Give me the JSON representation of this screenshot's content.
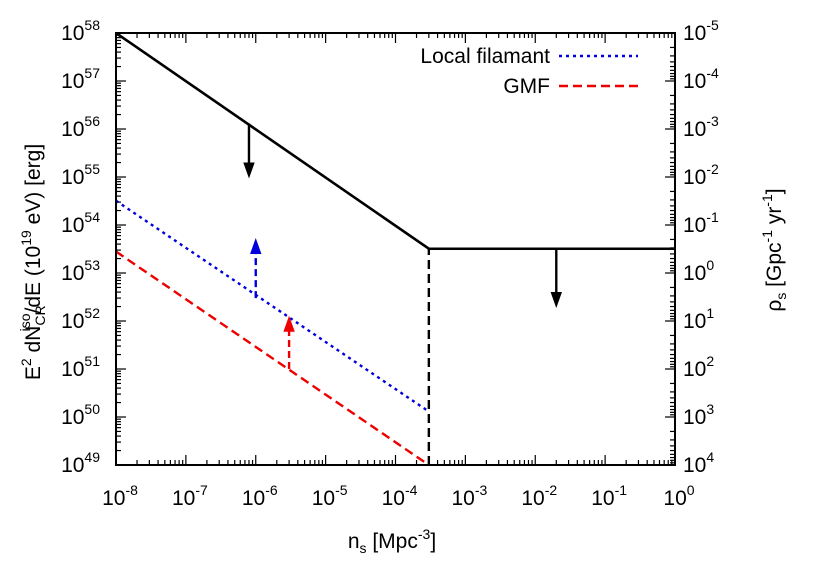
{
  "chart_data": {
    "type": "line",
    "x_scale": "log",
    "y_scale": "log",
    "y2_scale": "log",
    "xlim": [
      1e-08,
      1
    ],
    "ylim": [
      1e+49,
      1e+58
    ],
    "y2lim": [
      10000.0,
      1e-05
    ],
    "x_ticks": [
      {
        "base": "10",
        "exp": "-8"
      },
      {
        "base": "10",
        "exp": "-7"
      },
      {
        "base": "10",
        "exp": "-6"
      },
      {
        "base": "10",
        "exp": "-5"
      },
      {
        "base": "10",
        "exp": "-4"
      },
      {
        "base": "10",
        "exp": "-3"
      },
      {
        "base": "10",
        "exp": "-2"
      },
      {
        "base": "10",
        "exp": "-1"
      },
      {
        "base": "10",
        "exp": "0"
      }
    ],
    "y_ticks": [
      {
        "base": "10",
        "exp": "49"
      },
      {
        "base": "10",
        "exp": "50"
      },
      {
        "base": "10",
        "exp": "51"
      },
      {
        "base": "10",
        "exp": "52"
      },
      {
        "base": "10",
        "exp": "53"
      },
      {
        "base": "10",
        "exp": "54"
      },
      {
        "base": "10",
        "exp": "55"
      },
      {
        "base": "10",
        "exp": "56"
      },
      {
        "base": "10",
        "exp": "57"
      },
      {
        "base": "10",
        "exp": "58"
      }
    ],
    "y2_ticks": [
      {
        "base": "10",
        "exp": "4"
      },
      {
        "base": "10",
        "exp": "3"
      },
      {
        "base": "10",
        "exp": "2"
      },
      {
        "base": "10",
        "exp": "1"
      },
      {
        "base": "10",
        "exp": "0"
      },
      {
        "base": "10",
        "exp": "-1"
      },
      {
        "base": "10",
        "exp": "-2"
      },
      {
        "base": "10",
        "exp": "-3"
      },
      {
        "base": "10",
        "exp": "-4"
      },
      {
        "base": "10",
        "exp": "-5"
      }
    ],
    "xlabel": {
      "pre": "n",
      "sub": "s",
      "mid": " [Mpc",
      "sup": "-3",
      "post": "]"
    },
    "ylabel": {
      "p1": "E",
      "p1sup": "2",
      "p2": " dN",
      "p2sub": "CR",
      "p2sup": "iso",
      "p3": "/dE (10",
      "p3sup": "19",
      "p4": " eV) [erg]"
    },
    "y2label": {
      "p1": "ρ",
      "p1sub": "s",
      "p2": " [Gpc",
      "p2sup": "-1",
      "p3": " yr",
      "p3sup": "-1",
      "p4": "]"
    },
    "grid": false,
    "legend_position": "top-right",
    "series": [
      {
        "key": "upper-limit",
        "color": "#000000",
        "dash": "solid",
        "x": [
          1e-08,
          0.0003,
          1
        ],
        "y": [
          1e+58,
          3.2e+53,
          3.2e+53
        ]
      },
      {
        "key": "local-filament",
        "name": "Local filamant",
        "color": "#0000dd",
        "dash": "dotted",
        "x": [
          1e-08,
          0.0003
        ],
        "y": [
          3.2e+54,
          1.3e+50
        ]
      },
      {
        "key": "gmf",
        "name": "GMF",
        "color": "#ee0000",
        "dash": "dashed",
        "x": [
          1e-08,
          0.0003
        ],
        "y": [
          2.8e+53,
          1e+49
        ]
      },
      {
        "key": "transition",
        "color": "#000000",
        "dash": "dashed",
        "x": [
          0.0003,
          0.0003
        ],
        "y": [
          1e+49,
          3.2e+53
        ]
      }
    ],
    "arrows": [
      {
        "key": "down-arrow-left",
        "color": "#000000",
        "dash": "solid",
        "x": 8e-07,
        "y_from": 1.3e+56,
        "y_to": 1e+55
      },
      {
        "key": "down-arrow-right",
        "color": "#000000",
        "dash": "solid",
        "x": 0.02,
        "y_from": 3.2e+53,
        "y_to": 2e+52
      },
      {
        "key": "blue-up-arrow",
        "color": "#0000dd",
        "dash": "dashed",
        "x": 1e-06,
        "y_from": 3e+52,
        "y_to": 5e+53
      },
      {
        "key": "red-up-arrow",
        "color": "#ee0000",
        "dash": "dashed",
        "x": 3e-06,
        "y_from": 1e+51,
        "y_to": 1.2e+52
      }
    ]
  }
}
